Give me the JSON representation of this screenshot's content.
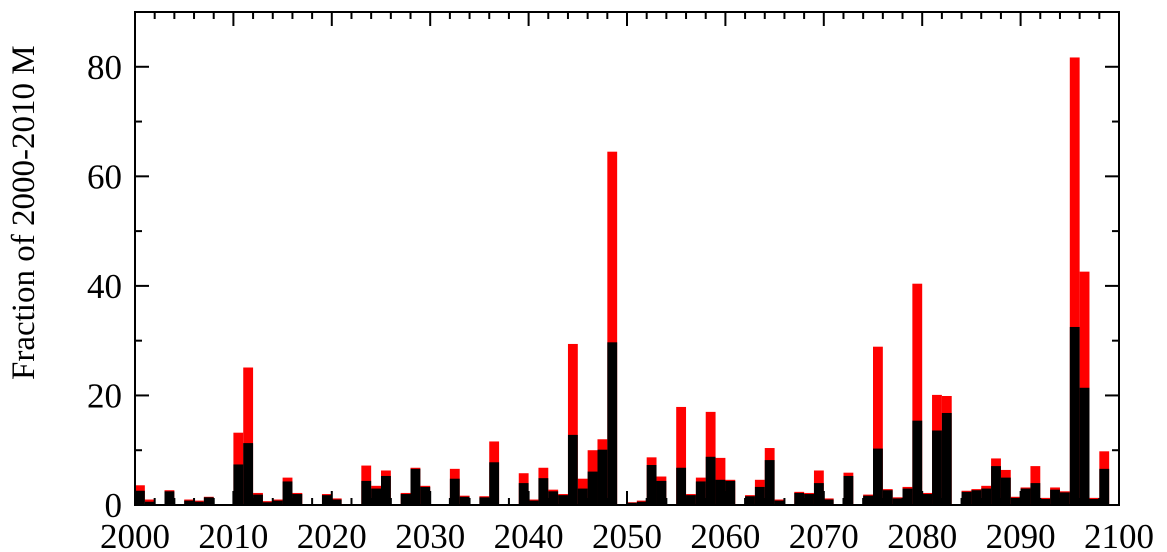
{
  "chart_data": {
    "type": "bar",
    "title": "",
    "xlabel": "",
    "ylabel": "Fraction of 2000-2010 M",
    "xlim": [
      2000,
      2100
    ],
    "ylim": [
      0,
      90
    ],
    "x_ticks": [
      2000,
      2010,
      2020,
      2030,
      2040,
      2050,
      2060,
      2070,
      2080,
      2090,
      2100
    ],
    "y_ticks": [
      0,
      20,
      40,
      60,
      80
    ],
    "grid": false,
    "legend": "none",
    "colors": {
      "total": "#ff0000",
      "component": "#000000"
    },
    "series": [
      {
        "color": "#ff0000",
        "points": [
          [
            2000,
            3.6
          ],
          [
            2001,
            1.0
          ],
          [
            2003,
            2.7
          ],
          [
            2005,
            1.0
          ],
          [
            2006,
            0.8
          ],
          [
            2007,
            1.5
          ],
          [
            2010,
            13.2
          ],
          [
            2011,
            25.1
          ],
          [
            2012,
            2.2
          ],
          [
            2013,
            0.7
          ],
          [
            2014,
            1.0
          ],
          [
            2015,
            5.0
          ],
          [
            2016,
            2.2
          ],
          [
            2019,
            2.0
          ],
          [
            2020,
            1.2
          ],
          [
            2023,
            7.2
          ],
          [
            2024,
            3.5
          ],
          [
            2025,
            6.3
          ],
          [
            2027,
            2.2
          ],
          [
            2028,
            6.8
          ],
          [
            2029,
            3.5
          ],
          [
            2032,
            6.6
          ],
          [
            2033,
            1.7
          ],
          [
            2035,
            1.6
          ],
          [
            2036,
            11.6
          ],
          [
            2039,
            5.8
          ],
          [
            2040,
            1.0
          ],
          [
            2041,
            6.8
          ],
          [
            2042,
            2.8
          ],
          [
            2043,
            2.0
          ],
          [
            2044,
            29.4
          ],
          [
            2045,
            4.8
          ],
          [
            2046,
            10.0
          ],
          [
            2047,
            12.0
          ],
          [
            2048,
            64.5
          ],
          [
            2050,
            0.5
          ],
          [
            2051,
            0.8
          ],
          [
            2052,
            8.7
          ],
          [
            2053,
            5.2
          ],
          [
            2055,
            17.9
          ],
          [
            2056,
            2.0
          ],
          [
            2057,
            5.0
          ],
          [
            2058,
            17.0
          ],
          [
            2059,
            8.6
          ],
          [
            2060,
            4.6
          ],
          [
            2062,
            1.8
          ],
          [
            2063,
            4.6
          ],
          [
            2064,
            10.4
          ],
          [
            2065,
            1.0
          ],
          [
            2067,
            2.4
          ],
          [
            2068,
            2.2
          ],
          [
            2069,
            6.3
          ],
          [
            2070,
            1.2
          ],
          [
            2072,
            5.9
          ],
          [
            2074,
            1.9
          ],
          [
            2075,
            28.9
          ],
          [
            2076,
            2.9
          ],
          [
            2077,
            1.4
          ],
          [
            2078,
            3.3
          ],
          [
            2079,
            40.4
          ],
          [
            2080,
            2.2
          ],
          [
            2081,
            20.1
          ],
          [
            2082,
            19.9
          ],
          [
            2084,
            2.6
          ],
          [
            2085,
            2.9
          ],
          [
            2086,
            3.5
          ],
          [
            2087,
            8.5
          ],
          [
            2088,
            6.4
          ],
          [
            2089,
            1.5
          ],
          [
            2090,
            3.2
          ],
          [
            2091,
            7.1
          ],
          [
            2092,
            1.3
          ],
          [
            2093,
            3.2
          ],
          [
            2094,
            2.5
          ],
          [
            2095,
            81.7
          ],
          [
            2096,
            42.6
          ],
          [
            2097,
            1.3
          ],
          [
            2098,
            9.8
          ]
        ]
      },
      {
        "color": "#000000",
        "points": [
          [
            2000,
            2.6
          ],
          [
            2001,
            0.6
          ],
          [
            2003,
            2.5
          ],
          [
            2005,
            0.8
          ],
          [
            2006,
            0.6
          ],
          [
            2007,
            1.4
          ],
          [
            2010,
            7.4
          ],
          [
            2011,
            11.3
          ],
          [
            2012,
            1.9
          ],
          [
            2013,
            0.5
          ],
          [
            2014,
            0.8
          ],
          [
            2015,
            4.3
          ],
          [
            2016,
            2.0
          ],
          [
            2019,
            1.8
          ],
          [
            2020,
            1.0
          ],
          [
            2023,
            4.4
          ],
          [
            2024,
            3.0
          ],
          [
            2025,
            5.3
          ],
          [
            2027,
            2.0
          ],
          [
            2028,
            6.6
          ],
          [
            2029,
            3.3
          ],
          [
            2032,
            4.8
          ],
          [
            2033,
            1.5
          ],
          [
            2035,
            1.4
          ],
          [
            2036,
            7.8
          ],
          [
            2039,
            4.0
          ],
          [
            2040,
            0.8
          ],
          [
            2041,
            4.9
          ],
          [
            2042,
            2.5
          ],
          [
            2043,
            1.8
          ],
          [
            2044,
            12.8
          ],
          [
            2045,
            3.0
          ],
          [
            2046,
            6.1
          ],
          [
            2047,
            10.1
          ],
          [
            2048,
            29.7
          ],
          [
            2050,
            0.4
          ],
          [
            2051,
            0.6
          ],
          [
            2052,
            7.3
          ],
          [
            2053,
            4.4
          ],
          [
            2055,
            6.8
          ],
          [
            2056,
            1.8
          ],
          [
            2057,
            4.3
          ],
          [
            2058,
            8.8
          ],
          [
            2059,
            4.6
          ],
          [
            2060,
            4.4
          ],
          [
            2062,
            1.6
          ],
          [
            2063,
            3.3
          ],
          [
            2064,
            8.2
          ],
          [
            2065,
            0.8
          ],
          [
            2067,
            2.2
          ],
          [
            2068,
            2.0
          ],
          [
            2069,
            4.0
          ],
          [
            2070,
            1.0
          ],
          [
            2072,
            5.3
          ],
          [
            2074,
            1.7
          ],
          [
            2075,
            10.3
          ],
          [
            2076,
            2.7
          ],
          [
            2077,
            1.2
          ],
          [
            2078,
            3.0
          ],
          [
            2079,
            15.4
          ],
          [
            2080,
            2.0
          ],
          [
            2081,
            13.6
          ],
          [
            2082,
            16.8
          ],
          [
            2084,
            2.4
          ],
          [
            2085,
            2.7
          ],
          [
            2086,
            3.0
          ],
          [
            2087,
            7.1
          ],
          [
            2088,
            5.0
          ],
          [
            2089,
            1.3
          ],
          [
            2090,
            3.0
          ],
          [
            2091,
            4.0
          ],
          [
            2092,
            1.1
          ],
          [
            2093,
            2.8
          ],
          [
            2094,
            2.3
          ],
          [
            2095,
            32.5
          ],
          [
            2096,
            21.4
          ],
          [
            2097,
            1.1
          ],
          [
            2098,
            6.6
          ]
        ]
      }
    ]
  }
}
